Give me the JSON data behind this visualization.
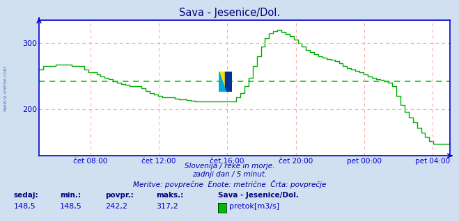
{
  "title": "Sava - Jesenice/Dol.",
  "title_color": "#000080",
  "bg_color": "#d0e0f0",
  "plot_bg_color": "#ffffff",
  "line_color": "#00aa00",
  "avg_line_color": "#00cc00",
  "avg_value": 242.2,
  "xlabel_color": "#0000cc",
  "grid_color": "#ffaaaa",
  "axis_color": "#0000cc",
  "xtick_labels": [
    "čet 08:00",
    "čet 12:00",
    "čet 16:00",
    "čet 20:00",
    "pet 00:00",
    "pet 04:00"
  ],
  "xtick_positions": [
    0.125,
    0.291,
    0.458,
    0.625,
    0.791,
    0.958
  ],
  "ylim": [
    130,
    335
  ],
  "yticks": [
    200,
    300
  ],
  "footer_line1": "Slovenija / reke in morje.",
  "footer_line2": "zadnji dan / 5 minut.",
  "footer_line3": "Meritve: povprečne  Enote: metrične  Črta: povprečje",
  "footer_color": "#0000aa",
  "bottom_labels": [
    "sedaj:",
    "min.:",
    "povpr.:",
    "maks.:"
  ],
  "bottom_values": [
    "148,5",
    "148,5",
    "242,2",
    "317,2"
  ],
  "bottom_series_label": "Sava - Jesenice/Dol.",
  "bottom_legend_label": "pretok[m3/s]",
  "side_text": "www.si-vreme.com",
  "side_text_color": "#3366bb",
  "series_data_y": [
    260,
    265,
    265,
    265,
    268,
    268,
    268,
    268,
    265,
    265,
    265,
    260,
    256,
    256,
    253,
    250,
    248,
    245,
    242,
    240,
    238,
    237,
    235,
    235,
    235,
    232,
    228,
    225,
    222,
    220,
    218,
    218,
    218,
    216,
    215,
    215,
    214,
    213,
    212,
    212,
    212,
    212,
    212,
    212,
    212,
    212,
    212,
    212,
    218,
    225,
    235,
    248,
    265,
    280,
    295,
    307,
    315,
    318,
    320,
    317,
    314,
    310,
    305,
    300,
    295,
    290,
    286,
    283,
    280,
    278,
    276,
    275,
    273,
    270,
    265,
    262,
    260,
    258,
    256,
    253,
    250,
    248,
    246,
    244,
    242,
    240,
    235,
    220,
    207,
    196,
    188,
    180,
    172,
    165,
    158,
    152,
    148,
    148,
    148,
    148,
    148
  ]
}
